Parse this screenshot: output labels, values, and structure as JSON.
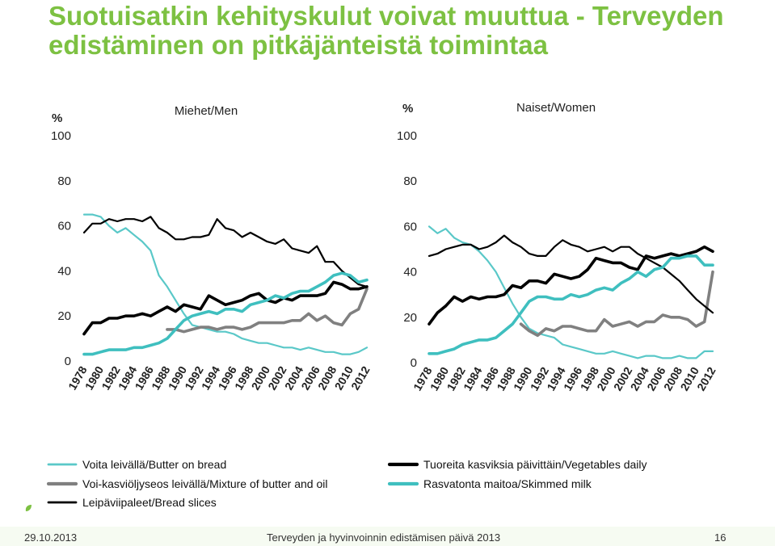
{
  "title": "Suotuisatkin kehityskulut voivat muuttua - Terveyden edistäminen on pitkäjänteistä toimintaa",
  "footer": {
    "date": "29.10.2013",
    "title": "Terveyden ja hyvinvoinnin edistämisen päivä 2013",
    "page": "16"
  },
  "colors": {
    "title": "#7dc142",
    "butter": "#5ac8c8",
    "mixture": "#808080",
    "bread": "#000000",
    "vegetables": "#000000",
    "skimmed": "#3fbfbf"
  },
  "icons": {
    "footer": "leaf-icon"
  },
  "chart_data": [
    {
      "type": "line",
      "title": "Miehet/Men",
      "ylabel": "%",
      "ylim": [
        0,
        100
      ],
      "yticks": [
        "0",
        "20",
        "40",
        "60",
        "80",
        "100"
      ],
      "categories": [
        "1978",
        "1980",
        "1982",
        "1984",
        "1986",
        "1988",
        "1990",
        "1992",
        "1994",
        "1996",
        "1998",
        "2000",
        "2002",
        "2004",
        "2006",
        "2008",
        "2010",
        "2012"
      ],
      "x": [
        1978,
        1979,
        1980,
        1981,
        1982,
        1983,
        1984,
        1985,
        1986,
        1987,
        1988,
        1989,
        1990,
        1991,
        1992,
        1993,
        1994,
        1995,
        1996,
        1997,
        1998,
        1999,
        2000,
        2001,
        2002,
        2003,
        2004,
        2005,
        2006,
        2007,
        2008,
        2009,
        2010,
        2011,
        2012
      ],
      "series": [
        {
          "name": "Voita leivällä/Butter on bread",
          "key": "butter",
          "values": [
            65,
            65,
            64,
            60,
            57,
            59,
            56,
            53,
            49,
            38,
            33,
            27,
            21,
            16,
            15,
            14,
            13,
            13,
            12,
            10,
            9,
            8,
            8,
            7,
            6,
            6,
            5,
            6,
            5,
            4,
            4,
            3,
            3,
            4,
            6
          ]
        },
        {
          "name": "Voi-kasviöljyseos leivällä/Mixture of butter and oil",
          "key": "mixture",
          "values": [
            null,
            null,
            null,
            null,
            null,
            null,
            null,
            null,
            null,
            null,
            14,
            14,
            13,
            14,
            15,
            15,
            14,
            15,
            15,
            14,
            15,
            17,
            17,
            17,
            17,
            18,
            18,
            21,
            18,
            20,
            17,
            16,
            21,
            23,
            32
          ]
        },
        {
          "name": "Leipäviipaleet/Bread slices",
          "key": "bread",
          "values": [
            57,
            61,
            61,
            63,
            62,
            63,
            63,
            62,
            64,
            59,
            57,
            54,
            54,
            55,
            55,
            56,
            63,
            59,
            58,
            55,
            57,
            55,
            53,
            52,
            54,
            50,
            49,
            48,
            51,
            44,
            44,
            40,
            37,
            34,
            33
          ]
        },
        {
          "name": "Tuoreita kasviksia päivittäin/Vegetables daily",
          "key": "vegetables",
          "values": [
            12,
            17,
            17,
            19,
            19,
            20,
            20,
            21,
            20,
            22,
            24,
            22,
            25,
            24,
            23,
            29,
            27,
            25,
            26,
            27,
            29,
            30,
            27,
            26,
            28,
            27,
            29,
            29,
            29,
            30,
            35,
            34,
            32,
            32,
            33
          ]
        },
        {
          "name": "Rasvatonta maitoa/Skimmed milk",
          "key": "skimmed",
          "values": [
            3,
            3,
            4,
            5,
            5,
            5,
            6,
            6,
            7,
            8,
            10,
            14,
            18,
            20,
            21,
            22,
            21,
            23,
            23,
            22,
            25,
            26,
            27,
            29,
            28,
            30,
            31,
            31,
            33,
            35,
            38,
            39,
            38,
            35,
            36
          ]
        }
      ]
    },
    {
      "type": "line",
      "title": "Naiset/Women",
      "ylabel": "%",
      "ylim": [
        0,
        100
      ],
      "yticks": [
        "0",
        "20",
        "40",
        "60",
        "80",
        "100"
      ],
      "categories": [
        "1978",
        "1980",
        "1982",
        "1984",
        "1986",
        "1988",
        "1990",
        "1992",
        "1994",
        "1996",
        "1998",
        "2000",
        "2002",
        "2004",
        "2006",
        "2008",
        "2010",
        "2012"
      ],
      "x": [
        1978,
        1979,
        1980,
        1981,
        1982,
        1983,
        1984,
        1985,
        1986,
        1987,
        1988,
        1989,
        1990,
        1991,
        1992,
        1993,
        1994,
        1995,
        1996,
        1997,
        1998,
        1999,
        2000,
        2001,
        2002,
        2003,
        2004,
        2005,
        2006,
        2007,
        2008,
        2009,
        2010,
        2011,
        2012
      ],
      "series": [
        {
          "name": "Voita leivällä/Butter on bread",
          "key": "butter",
          "values": [
            60,
            57,
            59,
            55,
            53,
            52,
            49,
            45,
            40,
            33,
            26,
            20,
            15,
            13,
            12,
            11,
            8,
            7,
            6,
            5,
            4,
            4,
            5,
            4,
            3,
            2,
            3,
            3,
            2,
            2,
            3,
            2,
            2,
            5,
            5
          ]
        },
        {
          "name": "Voi-kasviöljyseos leivällä/Mixture of butter and oil",
          "key": "mixture",
          "values": [
            null,
            null,
            null,
            null,
            null,
            null,
            null,
            null,
            null,
            null,
            null,
            17,
            14,
            12,
            15,
            14,
            16,
            16,
            15,
            14,
            14,
            19,
            16,
            17,
            18,
            16,
            18,
            18,
            21,
            20,
            20,
            19,
            16,
            18,
            40
          ]
        },
        {
          "name": "Leipäviipaleet/Bread slices",
          "key": "bread",
          "values": [
            47,
            48,
            50,
            51,
            52,
            52,
            50,
            51,
            53,
            56,
            53,
            51,
            48,
            47,
            47,
            51,
            54,
            52,
            51,
            49,
            50,
            51,
            49,
            51,
            51,
            48,
            46,
            44,
            42,
            39,
            36,
            32,
            28,
            25,
            22
          ]
        },
        {
          "name": "Tuoreita kasviksia päivittäin/Vegetables daily",
          "key": "vegetables",
          "values": [
            17,
            22,
            25,
            29,
            27,
            29,
            28,
            29,
            29,
            30,
            34,
            33,
            36,
            36,
            35,
            39,
            38,
            37,
            38,
            41,
            46,
            45,
            44,
            44,
            42,
            41,
            47,
            46,
            47,
            48,
            47,
            48,
            49,
            51,
            49
          ]
        },
        {
          "name": "Rasvatonta maitoa/Skimmed milk",
          "key": "skimmed",
          "values": [
            4,
            4,
            5,
            6,
            8,
            9,
            10,
            10,
            11,
            14,
            17,
            22,
            27,
            29,
            29,
            28,
            28,
            30,
            29,
            30,
            32,
            33,
            32,
            35,
            37,
            40,
            38,
            41,
            42,
            46,
            46,
            47,
            47,
            43,
            43
          ]
        }
      ]
    }
  ],
  "legend": [
    {
      "key": "butter",
      "label": "Voita leivällä/Butter on bread"
    },
    {
      "key": "vegetables",
      "label": "Tuoreita kasviksia  päivittäin/Vegetables daily"
    },
    {
      "key": "mixture",
      "label": "Voi-kasviöljyseos leivällä/Mixture of butter and oil"
    },
    {
      "key": "skimmed",
      "label": "Rasvatonta maitoa/Skimmed milk"
    },
    {
      "key": "bread",
      "label": "Leipäviipaleet/Bread slices"
    }
  ]
}
